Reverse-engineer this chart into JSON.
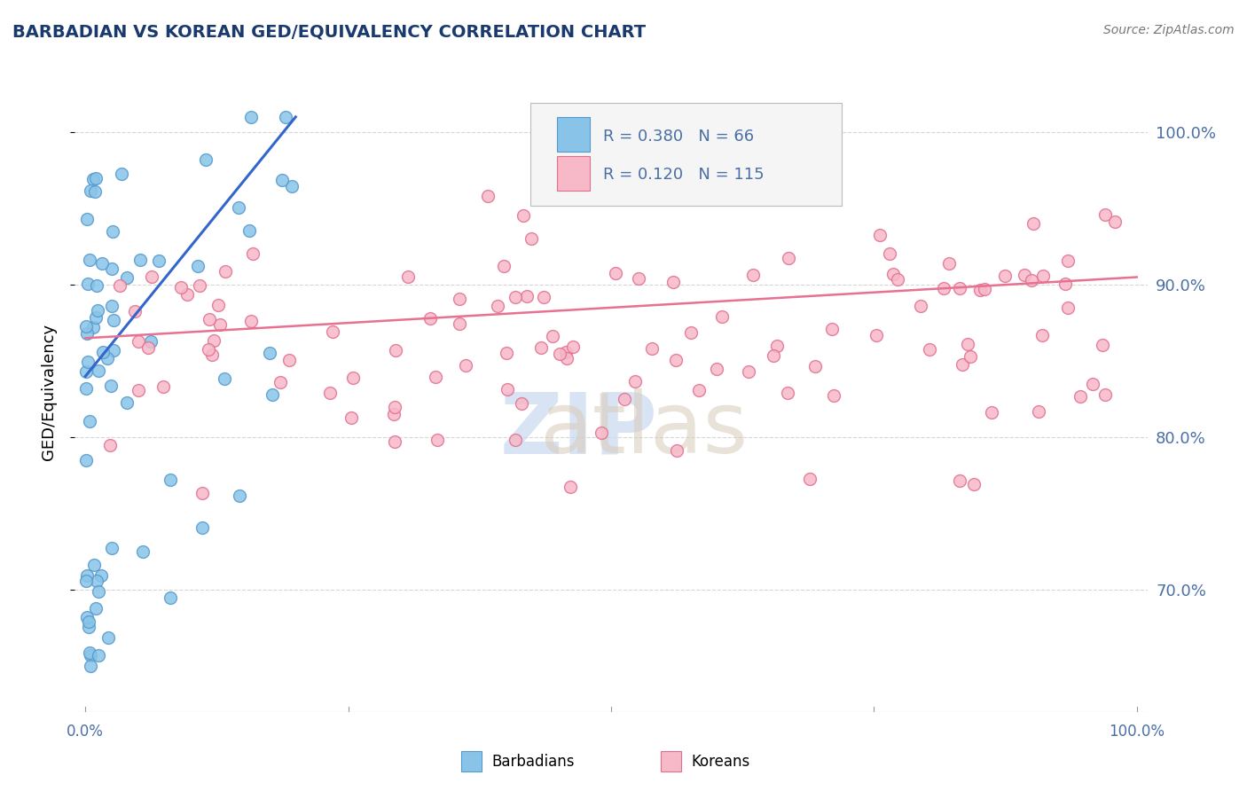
{
  "title": "BARBADIAN VS KOREAN GED/EQUIVALENCY CORRELATION CHART",
  "source": "Source: ZipAtlas.com",
  "ylabel": "GED/Equivalency",
  "barbadian_color": "#89c4e8",
  "korean_color": "#f7b8c8",
  "barbadian_edge": "#5599cc",
  "korean_edge": "#e07090",
  "trend_blue": "#3366cc",
  "trend_pink": "#e87090",
  "title_color": "#1a3a6e",
  "tick_color": "#4a6fa5",
  "grid_color": "#cccccc",
  "legend_barb_color": "#89c4e8",
  "legend_korean_color": "#f7b8c8",
  "xlim": [
    -1,
    101
  ],
  "ylim": [
    62,
    104
  ],
  "yticks": [
    70,
    80,
    90,
    100
  ],
  "watermark_zip_color": "#c8d8f0",
  "watermark_atlas_color": "#d8cbb8"
}
